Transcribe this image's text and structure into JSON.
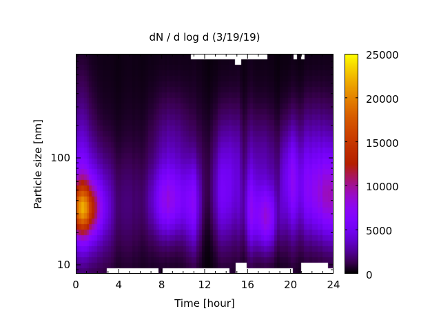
{
  "chart_data": {
    "type": "heatmap",
    "title": "dN / d log d (3/19/19)",
    "xlabel": "Time [hour]",
    "ylabel": "Particle size [nm]",
    "x_axis": {
      "range_hours": [
        0,
        24
      ],
      "major_ticks": [
        0,
        4,
        8,
        12,
        16,
        20,
        24
      ],
      "tick_labels": [
        "0",
        "4",
        "8",
        "12",
        "16",
        "20",
        "24"
      ],
      "minor_step_hours": 1
    },
    "y_axis": {
      "scale": "log",
      "range_nm": [
        8.25,
        942
      ],
      "log10_range": [
        0.916,
        2.974
      ],
      "major_ticks": [
        10,
        100
      ],
      "tick_labels": [
        "10",
        "100"
      ]
    },
    "colorbar": {
      "min": 0,
      "max": 25000,
      "ticks": [
        0,
        5000,
        10000,
        15000,
        20000,
        25000
      ],
      "tick_labels": [
        "0",
        "5000",
        "10000",
        "15000",
        "20000",
        "25000"
      ],
      "palette_name": "gnuplot-pm3d-black-purple-red-yellow",
      "palette_stops": [
        [
          0.0,
          "#000000"
        ],
        [
          0.05,
          "#39004F"
        ],
        [
          0.1,
          "#510096"
        ],
        [
          0.15,
          "#6301CE"
        ],
        [
          0.2,
          "#7202F3"
        ],
        [
          0.25,
          "#8004FF"
        ],
        [
          0.3,
          "#8C07F3"
        ],
        [
          0.35,
          "#970BCE"
        ],
        [
          0.4,
          "#A11096"
        ],
        [
          0.45,
          "#AB174F"
        ],
        [
          0.5,
          "#B42000"
        ],
        [
          0.55,
          "#BD2A00"
        ],
        [
          0.6,
          "#C63700"
        ],
        [
          0.65,
          "#CE4600"
        ],
        [
          0.7,
          "#D55700"
        ],
        [
          0.75,
          "#DD6C00"
        ],
        [
          0.8,
          "#E48300"
        ],
        [
          0.85,
          "#EB9D00"
        ],
        [
          0.9,
          "#F2BA00"
        ],
        [
          0.95,
          "#F8DB00"
        ],
        [
          1.0,
          "#FFFF00"
        ]
      ]
    },
    "grid": {
      "time_bins": 96,
      "size_bins": 40
    },
    "model": {
      "background_value": 300,
      "hotspots": [
        {
          "a": 13000,
          "t": 0.6,
          "st": 1.0,
          "u": 1.52,
          "su": 0.16
        },
        {
          "a": 6000,
          "t": 0.7,
          "st": 1.6,
          "u": 1.55,
          "su": 0.34
        },
        {
          "a": 2600,
          "t": 0.4,
          "st": 0.9,
          "u": 2.0,
          "su": 0.5
        },
        {
          "a": 900,
          "t": 5.0,
          "st": 1.8,
          "u": 1.55,
          "su": 0.33
        },
        {
          "a": 600,
          "t": 12.0,
          "st": 12.0,
          "u": 1.7,
          "su": 0.55
        },
        {
          "a": 6200,
          "t": 8.7,
          "st": 1.1,
          "u": 1.58,
          "su": 0.22
        },
        {
          "a": 2300,
          "t": 8.9,
          "st": 1.2,
          "u": 2.05,
          "su": 0.33
        },
        {
          "a": 4200,
          "t": 10.9,
          "st": 0.55,
          "u": 1.55,
          "su": 0.28
        },
        {
          "a": -1200,
          "t": 12.3,
          "st": 0.5,
          "u": 1.5,
          "su": 0.4
        },
        {
          "a": 3800,
          "t": 13.6,
          "st": 1.0,
          "u": 1.6,
          "su": 0.3
        },
        {
          "a": 2200,
          "t": 14.2,
          "st": 1.3,
          "u": 2.02,
          "su": 0.32
        },
        {
          "a": 3500,
          "t": 16.2,
          "st": 0.6,
          "u": 1.5,
          "su": 0.25
        },
        {
          "a": 2000,
          "t": 17.3,
          "st": 0.9,
          "u": 1.95,
          "su": 0.3
        },
        {
          "a": 6800,
          "t": 17.8,
          "st": 0.8,
          "u": 1.43,
          "su": 0.2
        },
        {
          "a": 2500,
          "t": 19.8,
          "st": 0.8,
          "u": 1.85,
          "su": 0.3
        },
        {
          "a": 3000,
          "t": 20.3,
          "st": 0.9,
          "u": 1.7,
          "su": 0.35
        },
        {
          "a": 5800,
          "t": 23.0,
          "st": 1.5,
          "u": 1.62,
          "su": 0.27
        },
        {
          "a": 2600,
          "t": 22.5,
          "st": 1.8,
          "u": 2.05,
          "su": 0.33
        },
        {
          "a": 2500,
          "t": 24.2,
          "st": 0.8,
          "u": 1.6,
          "su": 0.3
        }
      ],
      "column_stripes": [
        {
          "t": 3.9,
          "w": 0.3,
          "f": 0.8
        },
        {
          "t": 6.3,
          "w": 0.3,
          "f": 0.78
        },
        {
          "t": 12.35,
          "w": 0.3,
          "f": 0.55
        },
        {
          "t": 13.1,
          "w": 0.2,
          "f": 0.7
        },
        {
          "t": 15.65,
          "w": 0.25,
          "f": 0.6
        },
        {
          "t": 18.85,
          "w": 0.3,
          "f": 0.6
        },
        {
          "t": 19.6,
          "w": 0.2,
          "f": 0.75
        },
        {
          "t": 20.9,
          "w": 0.25,
          "f": 0.7
        },
        {
          "t": 11.0,
          "w": 0.2,
          "f": 1.25
        },
        {
          "t": 15.1,
          "w": 0.2,
          "f": 1.2
        },
        {
          "t": 16.3,
          "w": 0.25,
          "f": 1.2
        }
      ],
      "missing_data_regions": [
        {
          "rows": [
            0,
            0
          ],
          "t": [
            10.7,
            17.8
          ]
        },
        {
          "rows": [
            0,
            1
          ],
          "t": [
            14.8,
            15.4
          ]
        },
        {
          "rows": [
            0,
            0
          ],
          "t": [
            20.3,
            20.6
          ]
        },
        {
          "rows": [
            0,
            0
          ],
          "t": [
            21.0,
            21.3
          ]
        },
        {
          "rows": [
            39,
            39
          ],
          "t": [
            2.9,
            7.7
          ]
        },
        {
          "rows": [
            39,
            39
          ],
          "t": [
            8.1,
            14.3
          ]
        },
        {
          "rows": [
            39,
            39
          ],
          "t": [
            14.9,
            20.2
          ]
        },
        {
          "rows": [
            39,
            39
          ],
          "t": [
            21.0,
            24.0
          ]
        },
        {
          "rows": [
            38,
            39
          ],
          "t": [
            14.9,
            15.9
          ]
        },
        {
          "rows": [
            38,
            39
          ],
          "t": [
            21.0,
            23.5
          ]
        }
      ]
    },
    "layout": {
      "legend": "colorbar-right",
      "grid_lines": false,
      "plot_bg": "#000000"
    }
  }
}
